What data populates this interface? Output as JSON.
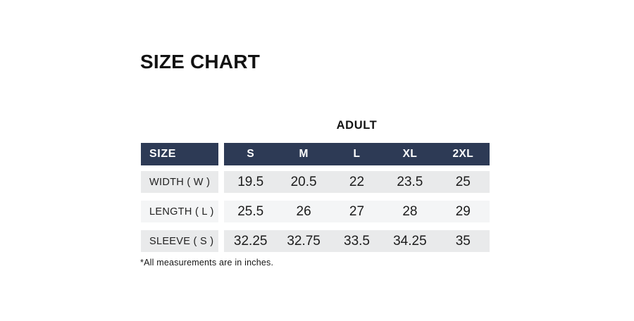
{
  "page": {
    "title": "SIZE CHART",
    "footnote": "*All measurements are in inches."
  },
  "colors": {
    "header_bg": "#2d3a55",
    "header_text": "#ffffff",
    "row_odd_bg": "#e9eaeb",
    "row_even_bg": "#f4f5f6",
    "page_bg": "#ffffff"
  },
  "chart_data": {
    "type": "table",
    "title": "SIZE CHART",
    "group_header": "ADULT",
    "corner_header": "SIZE",
    "columns": [
      "S",
      "M",
      "L",
      "XL",
      "2XL"
    ],
    "rows": [
      {
        "label": "WIDTH ( W )",
        "values": [
          "19.5",
          "20.5",
          "22",
          "23.5",
          "25"
        ]
      },
      {
        "label": "LENGTH ( L )",
        "values": [
          "25.5",
          "26",
          "27",
          "28",
          "29"
        ]
      },
      {
        "label": "SLEEVE ( S )",
        "values": [
          "32.25",
          "32.75",
          "33.5",
          "34.25",
          "35"
        ]
      }
    ],
    "footnote": "*All measurements are in inches.",
    "units": "inches",
    "legend_position": "none",
    "grid": "off"
  }
}
